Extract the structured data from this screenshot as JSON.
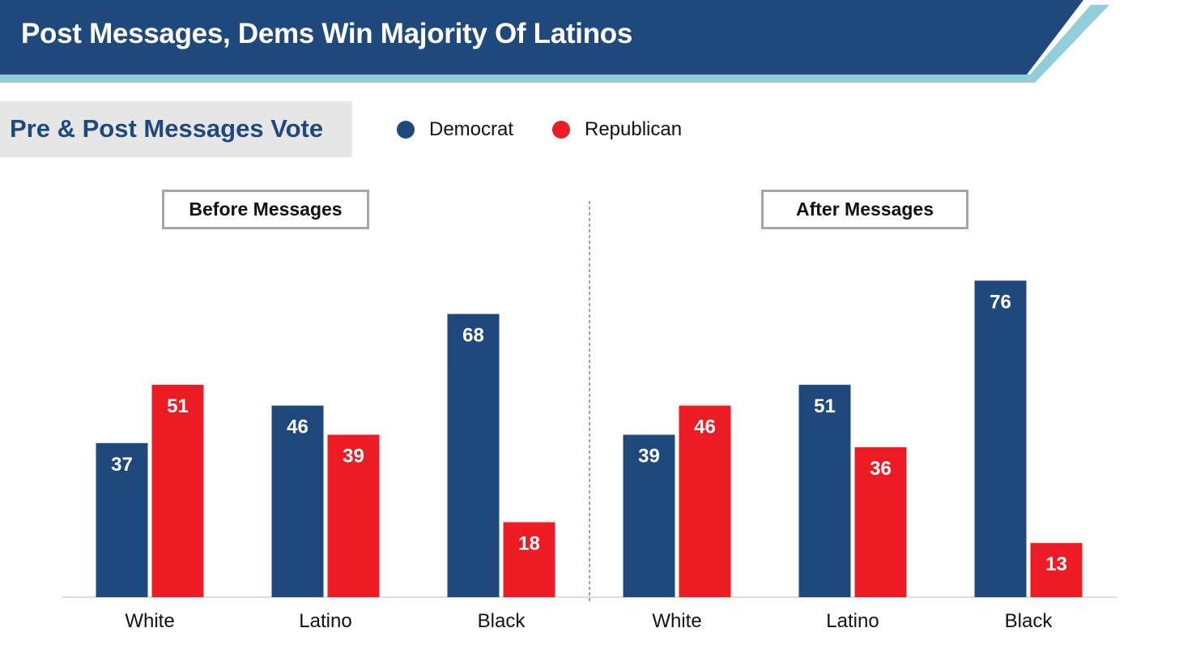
{
  "header": {
    "title": "Post Messages, Dems Win Majority Of Latinos",
    "bar_color": "#1f497d",
    "accent_color": "#92cddc"
  },
  "subtitle": "Pre & Post Messages Vote",
  "legend": {
    "items": [
      {
        "label": "Democrat",
        "color": "#1f497d"
      },
      {
        "label": "Republican",
        "color": "#ed1c24"
      }
    ]
  },
  "chart_data": [
    {
      "type": "bar",
      "title": "Before Messages",
      "categories": [
        "White",
        "Latino",
        "Black"
      ],
      "series": [
        {
          "name": "Democrat",
          "color": "#1f497d",
          "values": [
            37,
            46,
            68
          ]
        },
        {
          "name": "Republican",
          "color": "#ed1c24",
          "values": [
            51,
            39,
            18
          ]
        }
      ]
    },
    {
      "type": "bar",
      "title": "After Messages",
      "categories": [
        "White",
        "Latino",
        "Black"
      ],
      "series": [
        {
          "name": "Democrat",
          "color": "#1f497d",
          "values": [
            39,
            51,
            76
          ]
        },
        {
          "name": "Republican",
          "color": "#ed1c24",
          "values": [
            46,
            36,
            13
          ]
        }
      ]
    }
  ]
}
